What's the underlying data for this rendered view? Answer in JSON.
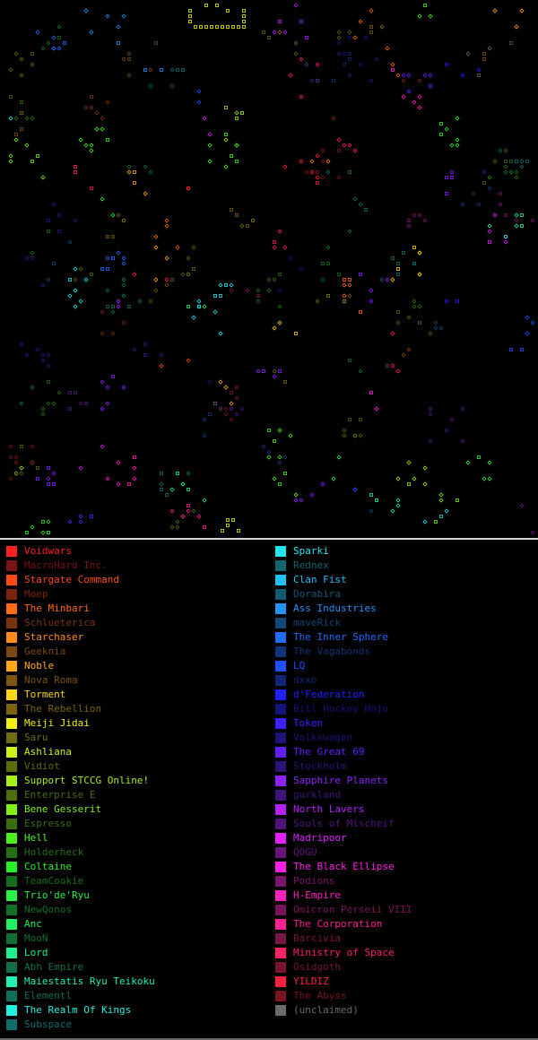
{
  "legend": {
    "left": [
      {
        "name": "Voidwars",
        "color": "#ff2020"
      },
      {
        "name": "MacroHard Inc.",
        "color": "#7a1414"
      },
      {
        "name": "Stargate Command",
        "color": "#ff4a18"
      },
      {
        "name": "Moep",
        "color": "#7a2410"
      },
      {
        "name": "The Minbari",
        "color": "#ff6a14"
      },
      {
        "name": "Schlueterica",
        "color": "#7a3410"
      },
      {
        "name": "Starchaser",
        "color": "#ff8c1a"
      },
      {
        "name": "Geeknia",
        "color": "#7a4812"
      },
      {
        "name": "Noble",
        "color": "#ffaa14"
      },
      {
        "name": "Nova Roma",
        "color": "#7a5410"
      },
      {
        "name": "Torment",
        "color": "#ffd414"
      },
      {
        "name": "The Rebellion",
        "color": "#7a6410"
      },
      {
        "name": "Meiji Jidai",
        "color": "#f0f014"
      },
      {
        "name": "Saru",
        "color": "#6e6e10"
      },
      {
        "name": "Ashliana",
        "color": "#ccf014"
      },
      {
        "name": "Vidiot",
        "color": "#5a6e10"
      },
      {
        "name": "Support STCCG Online!",
        "color": "#a8f014"
      },
      {
        "name": "Enterprise E",
        "color": "#4a6e10"
      },
      {
        "name": "Bene Gesserit",
        "color": "#80f014"
      },
      {
        "name": "Espresso",
        "color": "#3a6e10"
      },
      {
        "name": "Hell",
        "color": "#4cf01a"
      },
      {
        "name": "Holderheck",
        "color": "#266e14"
      },
      {
        "name": "Coltaine",
        "color": "#28f028"
      },
      {
        "name": "TeamCookie",
        "color": "#146e1e"
      },
      {
        "name": "Trio'de'Ryu",
        "color": "#28f048"
      },
      {
        "name": "NewQonos",
        "color": "#146e28"
      },
      {
        "name": "Anc",
        "color": "#20f060"
      },
      {
        "name": "MooN",
        "color": "#126e32"
      },
      {
        "name": "Lord",
        "color": "#20f08c"
      },
      {
        "name": "Abh Empire",
        "color": "#126e44"
      },
      {
        "name": "Maiestatis Ryu Teikoku",
        "color": "#20f0b4"
      },
      {
        "name": "Elementl",
        "color": "#126e58"
      },
      {
        "name": "The Realm Of Kings",
        "color": "#20f0e0"
      },
      {
        "name": "Subspace",
        "color": "#126e6e"
      }
    ],
    "right": [
      {
        "name": "Sparki",
        "color": "#20e4f0"
      },
      {
        "name": "Rednex",
        "color": "#12646e"
      },
      {
        "name": "Clan Fist",
        "color": "#20c0f8"
      },
      {
        "name": "Dorabira",
        "color": "#125a74"
      },
      {
        "name": "Ass Industries",
        "color": "#2094f8"
      },
      {
        "name": "maveRick",
        "color": "#124674"
      },
      {
        "name": "The Inner Sphere",
        "color": "#206cff"
      },
      {
        "name": "The Vagabonds",
        "color": "#123478"
      },
      {
        "name": "LQ",
        "color": "#2050ff"
      },
      {
        "name": "dxxo",
        "color": "#122478"
      },
      {
        "name": "d'Federation",
        "color": "#2020ff"
      },
      {
        "name": "Bill Hockey Hojo",
        "color": "#14147a"
      },
      {
        "name": "Token",
        "color": "#3c20ff"
      },
      {
        "name": "Volkswagen",
        "color": "#1c147a"
      },
      {
        "name": "The Great 69",
        "color": "#6020ff"
      },
      {
        "name": "Stockholm",
        "color": "#2c147a"
      },
      {
        "name": "Sapphire Planets",
        "color": "#8c20ff"
      },
      {
        "name": "gurkland",
        "color": "#3e147a"
      },
      {
        "name": "North Lavers",
        "color": "#b420ff"
      },
      {
        "name": "Souls of Mischeif",
        "color": "#50147a"
      },
      {
        "name": "Madripoor",
        "color": "#e020ff"
      },
      {
        "name": "QOGU",
        "color": "#64147a"
      },
      {
        "name": "The Black Ellipse",
        "color": "#ff20e8"
      },
      {
        "name": "Podions",
        "color": "#7a146e"
      },
      {
        "name": "H-Empire",
        "color": "#ff20c0"
      },
      {
        "name": "Omicron Perseii VIII",
        "color": "#7a145a"
      },
      {
        "name": "The Corporation",
        "color": "#ff2094"
      },
      {
        "name": "Barcivia",
        "color": "#7a1446"
      },
      {
        "name": "Ministry of Space",
        "color": "#ff2068"
      },
      {
        "name": "Osidgoth",
        "color": "#7a1432"
      },
      {
        "name": "YILDIZ",
        "color": "#ff2040"
      },
      {
        "name": "The Abyss",
        "color": "#7a1420"
      },
      {
        "name": "(unclaimed)",
        "color": "#6a6a6a"
      }
    ]
  }
}
